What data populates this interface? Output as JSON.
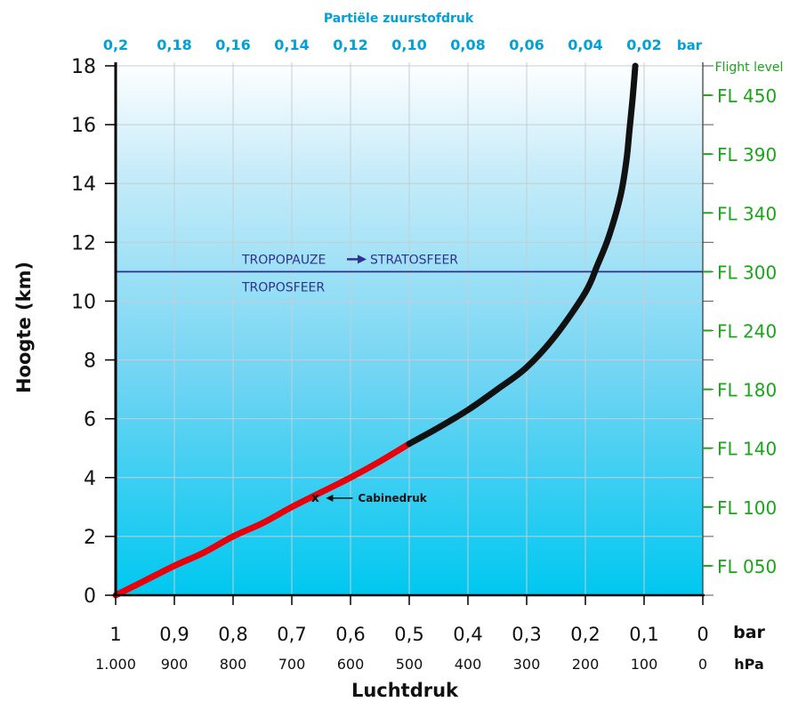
{
  "chart_data": {
    "type": "line",
    "xlabel": "Luchtdruk",
    "ylabel": "Hoogte (km)",
    "top_axis_title": "Partiële zuurstofdruk",
    "top_axis_unit": "bar",
    "bottom_unit_bar": "bar",
    "bottom_unit_hpa": "hPa",
    "right_axis_title": "Flight level",
    "xlim": [
      1,
      0
    ],
    "ylim": [
      0,
      18
    ],
    "grid": true,
    "y_ticks": [
      "0",
      "2",
      "4",
      "6",
      "8",
      "10",
      "12",
      "14",
      "16",
      "18"
    ],
    "x_ticks_bar": [
      "1",
      "0,9",
      "0,8",
      "0,7",
      "0,6",
      "0,5",
      "0,4",
      "0,3",
      "0,2",
      "0,1",
      "0"
    ],
    "x_ticks_hpa": [
      "1.000",
      "900",
      "800",
      "700",
      "600",
      "500",
      "400",
      "300",
      "200",
      "100",
      "0"
    ],
    "top_ticks": [
      "0,2",
      "0,18",
      "0,16",
      "0,14",
      "0,12",
      "0,10",
      "0,08",
      "0,06",
      "0,04",
      "0,02"
    ],
    "flight_levels": [
      {
        "label": "FL 050",
        "km": 1.0
      },
      {
        "label": "FL 100",
        "km": 3.0
      },
      {
        "label": "FL 140",
        "km": 5.0
      },
      {
        "label": "FL 180",
        "km": 7.0
      },
      {
        "label": "FL 240",
        "km": 9.0
      },
      {
        "label": "FL 300",
        "km": 11.0
      },
      {
        "label": "FL 340",
        "km": 13.0
      },
      {
        "label": "FL 390",
        "km": 15.0
      },
      {
        "label": "FL 450",
        "km": 17.0
      }
    ],
    "series": [
      {
        "color": "#e8000b",
        "points": [
          [
            1.0,
            0.0
          ],
          [
            0.95,
            0.5
          ],
          [
            0.9,
            1.0
          ],
          [
            0.85,
            1.45
          ],
          [
            0.8,
            2.0
          ],
          [
            0.75,
            2.45
          ],
          [
            0.7,
            3.0
          ],
          [
            0.65,
            3.5
          ],
          [
            0.6,
            4.0
          ],
          [
            0.55,
            4.55
          ],
          [
            0.5,
            5.15
          ]
        ]
      },
      {
        "color": "#111111",
        "points": [
          [
            0.5,
            5.15
          ],
          [
            0.45,
            5.7
          ],
          [
            0.4,
            6.3
          ],
          [
            0.35,
            7.0
          ],
          [
            0.3,
            7.75
          ],
          [
            0.25,
            8.85
          ],
          [
            0.2,
            10.3
          ],
          [
            0.18,
            11.2
          ],
          [
            0.16,
            12.2
          ],
          [
            0.14,
            13.6
          ],
          [
            0.13,
            14.8
          ],
          [
            0.125,
            15.8
          ],
          [
            0.12,
            16.8
          ],
          [
            0.117,
            17.5
          ],
          [
            0.115,
            18.0
          ]
        ]
      }
    ],
    "reference_line": {
      "km": 11,
      "color": "#2e3192",
      "label_above": "TROPOPAUZE",
      "label_above_right": "STRATOSFEER",
      "label_below": "TROPOSFEER"
    },
    "annotation": {
      "marker": "x",
      "text": "Cabinedruk",
      "bar": 0.66,
      "km": 3.3
    },
    "colors": {
      "sky_top": "#ffffff",
      "sky_bottom": "#00c8f0",
      "top_axis": "#00a0d8",
      "right_axis": "#1aa51a",
      "grid": "#c8d0d6"
    }
  }
}
